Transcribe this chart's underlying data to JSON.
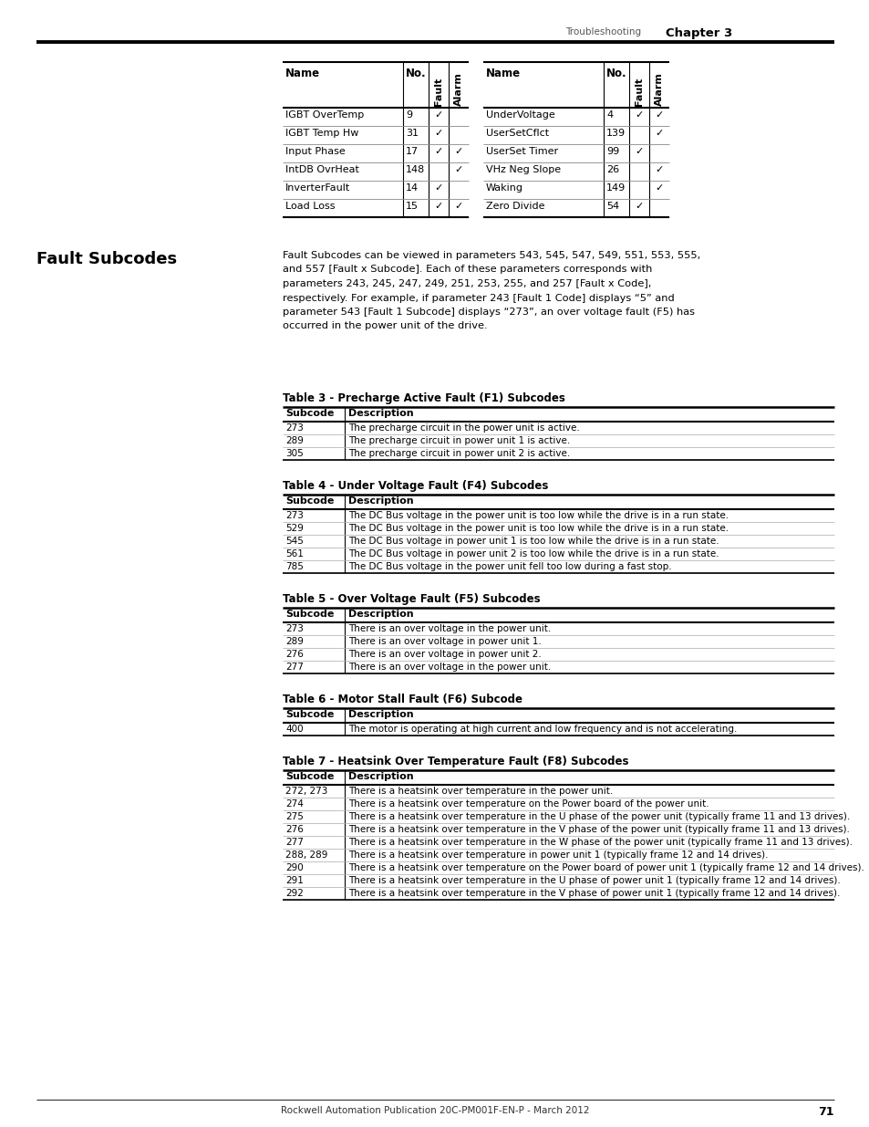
{
  "page_header_left": "Troubleshooting",
  "page_header_right": "Chapter 3",
  "page_footer": "Rockwell Automation Publication 20C-PM001F-EN-P - March 2012",
  "page_number": "71",
  "section_title": "Fault Subcodes",
  "intro_text_lines": [
    "Fault Subcodes can be viewed in parameters 543, 545, 547, 549, 551, 553, 555,",
    "and 557 [Fault x Subcode]. Each of these parameters corresponds with",
    "parameters 243, 245, 247, 249, 251, 253, 255, and 257 [Fault x Code],",
    "respectively. For example, if parameter 243 [Fault 1 Code] displays “5” and",
    "parameter 543 [Fault 1 Subcode] displays “273”, an over voltage fault (F5) has",
    "occurred in the power unit of the drive."
  ],
  "top_table_left": {
    "rows": [
      [
        "IGBT OverTemp",
        "9",
        true,
        false
      ],
      [
        "IGBT Temp Hw",
        "31",
        true,
        false
      ],
      [
        "Input Phase",
        "17",
        true,
        true
      ],
      [
        "IntDB OvrHeat",
        "148",
        false,
        true
      ],
      [
        "InverterFault",
        "14",
        true,
        false
      ],
      [
        "Load Loss",
        "15",
        true,
        true
      ]
    ]
  },
  "top_table_right": {
    "rows": [
      [
        "UnderVoltage",
        "4",
        true,
        true
      ],
      [
        "UserSetCflct",
        "139",
        false,
        true
      ],
      [
        "UserSet Timer",
        "99",
        true,
        false
      ],
      [
        "VHz Neg Slope",
        "26",
        false,
        true
      ],
      [
        "Waking",
        "149",
        false,
        true
      ],
      [
        "Zero Divide",
        "54",
        true,
        false
      ]
    ]
  },
  "table3_title": "Table 3 - Precharge Active Fault (F1) Subcodes",
  "table3_rows": [
    [
      "273",
      "The precharge circuit in the power unit is active."
    ],
    [
      "289",
      "The precharge circuit in power unit 1 is active."
    ],
    [
      "305",
      "The precharge circuit in power unit 2 is active."
    ]
  ],
  "table4_title": "Table 4 - Under Voltage Fault (F4) Subcodes",
  "table4_rows": [
    [
      "273",
      "The DC Bus voltage in the power unit is too low while the drive is in a run state."
    ],
    [
      "529",
      "The DC Bus voltage in the power unit is too low while the drive is in a run state."
    ],
    [
      "545",
      "The DC Bus voltage in power unit 1 is too low while the drive is in a run state."
    ],
    [
      "561",
      "The DC Bus voltage in power unit 2 is too low while the drive is in a run state."
    ],
    [
      "785",
      "The DC Bus voltage in the power unit fell too low during a fast stop."
    ]
  ],
  "table5_title": "Table 5 - Over Voltage Fault (F5) Subcodes",
  "table5_rows": [
    [
      "273",
      "There is an over voltage in the power unit."
    ],
    [
      "289",
      "There is an over voltage in power unit 1."
    ],
    [
      "276",
      "There is an over voltage in power unit 2."
    ],
    [
      "277",
      "There is an over voltage in the power unit."
    ]
  ],
  "table6_title": "Table 6 - Motor Stall Fault (F6) Subcode",
  "table6_rows": [
    [
      "400",
      "The motor is operating at high current and low frequency and is not accelerating."
    ]
  ],
  "table7_title": "Table 7 - Heatsink Over Temperature Fault (F8) Subcodes",
  "table7_rows": [
    [
      "272, 273",
      "There is a heatsink over temperature in the power unit."
    ],
    [
      "274",
      "There is a heatsink over temperature on the Power board of the power unit."
    ],
    [
      "275",
      "There is a heatsink over temperature in the U phase of the power unit (typically frame 11 and 13 drives)."
    ],
    [
      "276",
      "There is a heatsink over temperature in the V phase of the power unit (typically frame 11 and 13 drives)."
    ],
    [
      "277",
      "There is a heatsink over temperature in the W phase of the power unit (typically frame 11 and 13 drives)."
    ],
    [
      "288, 289",
      "There is a heatsink over temperature in power unit 1 (typically frame 12 and 14 drives)."
    ],
    [
      "290",
      "There is a heatsink over temperature on the Power board of power unit 1 (typically frame 12 and 14 drives)."
    ],
    [
      "291",
      "There is a heatsink over temperature in the U phase of power unit 1 (typically frame 12 and 14 drives)."
    ],
    [
      "292",
      "There is a heatsink over temperature in the V phase of power unit 1 (typically frame 12 and 14 drives)."
    ]
  ]
}
